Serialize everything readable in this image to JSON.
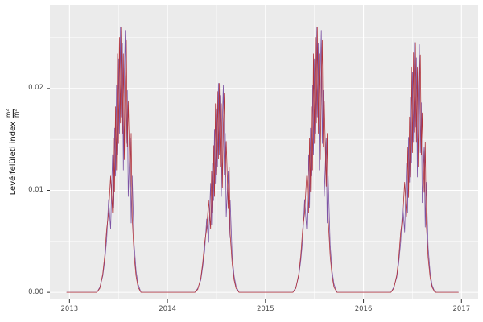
{
  "chart_data": {
    "type": "line",
    "title": "",
    "xlabel": "",
    "ylabel_text": "Levélfelületi index",
    "ylabel_fraction": {
      "numerator": "m²",
      "denominator": "m²"
    },
    "layout": {
      "panel_bg": "#EBEBEB",
      "grid_major": "#FFFFFF",
      "grid_minor": "#FFFFFF",
      "tick_color": "#333333",
      "label_color": "#4D4D4D",
      "grid": "on",
      "legend": "none",
      "domain": {
        "xmin": 2012.8,
        "xmax": 2017.17,
        "ymin": -0.0007,
        "ymax": 0.0282
      }
    },
    "x_axis": {
      "ticks": [
        {
          "v": 2013,
          "label": "2013"
        },
        {
          "v": 2014,
          "label": "2014"
        },
        {
          "v": 2015,
          "label": "2015"
        },
        {
          "v": 2016,
          "label": "2016"
        },
        {
          "v": 2017,
          "label": "2017"
        }
      ],
      "minor": [
        2013.5,
        2014.5,
        2015.5,
        2016.5
      ]
    },
    "y_axis": {
      "ticks": [
        {
          "v": 0.0,
          "label": "0.00"
        },
        {
          "v": 0.01,
          "label": "0.01"
        },
        {
          "v": 0.02,
          "label": "0.02"
        }
      ],
      "minor": [
        0.005,
        0.015,
        0.025
      ]
    },
    "series": [
      {
        "name": "series-purple",
        "color": "#7D54A5",
        "points": [
          [
            2012.97,
            0
          ],
          [
            2013.28,
            0
          ],
          [
            2013.31,
            0.0005
          ],
          [
            2013.34,
            0.0016
          ],
          [
            2013.36,
            0.0031
          ],
          [
            2013.38,
            0.0052
          ],
          [
            2013.4,
            0.0091
          ],
          [
            2013.42,
            0.0062
          ],
          [
            2013.44,
            0.0135
          ],
          [
            2013.45,
            0.0083
          ],
          [
            2013.46,
            0.0161
          ],
          [
            2013.47,
            0.0114
          ],
          [
            2013.48,
            0.0203
          ],
          [
            2013.49,
            0.0135
          ],
          [
            2013.5,
            0.0229
          ],
          [
            2013.51,
            0.0156
          ],
          [
            2013.52,
            0.026
          ],
          [
            2013.53,
            0.0172
          ],
          [
            2013.54,
            0.0244
          ],
          [
            2013.55,
            0.012
          ],
          [
            2013.56,
            0.0213
          ],
          [
            2013.57,
            0.0257
          ],
          [
            2013.58,
            0.0146
          ],
          [
            2013.59,
            0.0198
          ],
          [
            2013.6,
            0.0094
          ],
          [
            2013.62,
            0.0151
          ],
          [
            2013.63,
            0.0068
          ],
          [
            2013.64,
            0.0114
          ],
          [
            2013.66,
            0.0047
          ],
          [
            2013.68,
            0.0021
          ],
          [
            2013.7,
            0.0008
          ],
          [
            2013.73,
            0
          ],
          [
            2014.28,
            0
          ],
          [
            2014.31,
            0.0004
          ],
          [
            2014.34,
            0.0012
          ],
          [
            2014.36,
            0.0025
          ],
          [
            2014.38,
            0.0041
          ],
          [
            2014.4,
            0.0072
          ],
          [
            2014.42,
            0.0049
          ],
          [
            2014.44,
            0.0107
          ],
          [
            2014.45,
            0.0066
          ],
          [
            2014.46,
            0.0127
          ],
          [
            2014.47,
            0.009
          ],
          [
            2014.48,
            0.016
          ],
          [
            2014.49,
            0.0107
          ],
          [
            2014.5,
            0.018
          ],
          [
            2014.51,
            0.0123
          ],
          [
            2014.52,
            0.0205
          ],
          [
            2014.53,
            0.0135
          ],
          [
            2014.54,
            0.0193
          ],
          [
            2014.55,
            0.0094
          ],
          [
            2014.56,
            0.0168
          ],
          [
            2014.57,
            0.0203
          ],
          [
            2014.58,
            0.0115
          ],
          [
            2014.59,
            0.0156
          ],
          [
            2014.6,
            0.0074
          ],
          [
            2014.62,
            0.0119
          ],
          [
            2014.63,
            0.0053
          ],
          [
            2014.64,
            0.009
          ],
          [
            2014.66,
            0.0037
          ],
          [
            2014.68,
            0.0016
          ],
          [
            2014.7,
            0.0006
          ],
          [
            2014.73,
            0
          ],
          [
            2015.28,
            0
          ],
          [
            2015.31,
            0.0005
          ],
          [
            2015.34,
            0.0016
          ],
          [
            2015.36,
            0.0031
          ],
          [
            2015.38,
            0.0052
          ],
          [
            2015.4,
            0.0091
          ],
          [
            2015.42,
            0.0062
          ],
          [
            2015.44,
            0.0135
          ],
          [
            2015.45,
            0.0083
          ],
          [
            2015.46,
            0.0161
          ],
          [
            2015.47,
            0.0114
          ],
          [
            2015.48,
            0.0203
          ],
          [
            2015.49,
            0.0135
          ],
          [
            2015.5,
            0.0229
          ],
          [
            2015.51,
            0.0156
          ],
          [
            2015.52,
            0.026
          ],
          [
            2015.53,
            0.0172
          ],
          [
            2015.54,
            0.0244
          ],
          [
            2015.55,
            0.012
          ],
          [
            2015.56,
            0.0213
          ],
          [
            2015.57,
            0.0257
          ],
          [
            2015.58,
            0.0146
          ],
          [
            2015.59,
            0.0198
          ],
          [
            2015.6,
            0.0094
          ],
          [
            2015.62,
            0.0151
          ],
          [
            2015.63,
            0.0068
          ],
          [
            2015.64,
            0.0114
          ],
          [
            2015.66,
            0.0047
          ],
          [
            2015.68,
            0.0021
          ],
          [
            2015.7,
            0.0008
          ],
          [
            2015.73,
            0
          ],
          [
            2016.28,
            0
          ],
          [
            2016.31,
            0.0005
          ],
          [
            2016.34,
            0.0015
          ],
          [
            2016.36,
            0.0029
          ],
          [
            2016.38,
            0.0049
          ],
          [
            2016.4,
            0.0086
          ],
          [
            2016.42,
            0.0059
          ],
          [
            2016.44,
            0.0127
          ],
          [
            2016.45,
            0.0078
          ],
          [
            2016.46,
            0.0152
          ],
          [
            2016.47,
            0.0108
          ],
          [
            2016.48,
            0.0191
          ],
          [
            2016.49,
            0.0127
          ],
          [
            2016.5,
            0.0216
          ],
          [
            2016.51,
            0.0147
          ],
          [
            2016.52,
            0.0245
          ],
          [
            2016.53,
            0.0162
          ],
          [
            2016.54,
            0.023
          ],
          [
            2016.55,
            0.0113
          ],
          [
            2016.56,
            0.0201
          ],
          [
            2016.57,
            0.0243
          ],
          [
            2016.58,
            0.0137
          ],
          [
            2016.59,
            0.0186
          ],
          [
            2016.6,
            0.0088
          ],
          [
            2016.62,
            0.0142
          ],
          [
            2016.63,
            0.0064
          ],
          [
            2016.64,
            0.0108
          ],
          [
            2016.66,
            0.0044
          ],
          [
            2016.68,
            0.002
          ],
          [
            2016.7,
            0.0007
          ],
          [
            2016.73,
            0
          ],
          [
            2016.97,
            0
          ]
        ]
      },
      {
        "name": "series-red",
        "color": "#B2343C",
        "points": [
          [
            2012.97,
            0
          ],
          [
            2013.28,
            0
          ],
          [
            2013.31,
            0.0004
          ],
          [
            2013.34,
            0.0018
          ],
          [
            2013.36,
            0.0036
          ],
          [
            2013.38,
            0.0062
          ],
          [
            2013.4,
            0.0078
          ],
          [
            2013.42,
            0.0114
          ],
          [
            2013.44,
            0.0078
          ],
          [
            2013.45,
            0.0151
          ],
          [
            2013.46,
            0.0099
          ],
          [
            2013.47,
            0.0182
          ],
          [
            2013.48,
            0.012
          ],
          [
            2013.49,
            0.0234
          ],
          [
            2013.5,
            0.0146
          ],
          [
            2013.51,
            0.025
          ],
          [
            2013.52,
            0.0166
          ],
          [
            2013.53,
            0.026
          ],
          [
            2013.54,
            0.0156
          ],
          [
            2013.55,
            0.0234
          ],
          [
            2013.56,
            0.013
          ],
          [
            2013.57,
            0.0208
          ],
          [
            2013.58,
            0.0247
          ],
          [
            2013.59,
            0.0143
          ],
          [
            2013.6,
            0.0187
          ],
          [
            2013.62,
            0.0104
          ],
          [
            2013.63,
            0.0156
          ],
          [
            2013.64,
            0.0073
          ],
          [
            2013.66,
            0.0036
          ],
          [
            2013.68,
            0.0016
          ],
          [
            2013.7,
            0.0005
          ],
          [
            2013.73,
            0
          ],
          [
            2014.28,
            0
          ],
          [
            2014.31,
            0.0003
          ],
          [
            2014.34,
            0.0014
          ],
          [
            2014.36,
            0.0029
          ],
          [
            2014.38,
            0.0049
          ],
          [
            2014.4,
            0.0062
          ],
          [
            2014.42,
            0.009
          ],
          [
            2014.44,
            0.0062
          ],
          [
            2014.45,
            0.0119
          ],
          [
            2014.46,
            0.0078
          ],
          [
            2014.47,
            0.0144
          ],
          [
            2014.48,
            0.0094
          ],
          [
            2014.49,
            0.0185
          ],
          [
            2014.5,
            0.0115
          ],
          [
            2014.51,
            0.0197
          ],
          [
            2014.52,
            0.0131
          ],
          [
            2014.53,
            0.0205
          ],
          [
            2014.54,
            0.0123
          ],
          [
            2014.55,
            0.0185
          ],
          [
            2014.56,
            0.0103
          ],
          [
            2014.57,
            0.0164
          ],
          [
            2014.58,
            0.0195
          ],
          [
            2014.59,
            0.0113
          ],
          [
            2014.6,
            0.0148
          ],
          [
            2014.62,
            0.0082
          ],
          [
            2014.63,
            0.0123
          ],
          [
            2014.64,
            0.0057
          ],
          [
            2014.66,
            0.0029
          ],
          [
            2014.68,
            0.0012
          ],
          [
            2014.7,
            0.0004
          ],
          [
            2014.73,
            0
          ],
          [
            2015.28,
            0
          ],
          [
            2015.31,
            0.0004
          ],
          [
            2015.34,
            0.0018
          ],
          [
            2015.36,
            0.0036
          ],
          [
            2015.38,
            0.0062
          ],
          [
            2015.4,
            0.0078
          ],
          [
            2015.42,
            0.0114
          ],
          [
            2015.44,
            0.0078
          ],
          [
            2015.45,
            0.0151
          ],
          [
            2015.46,
            0.0099
          ],
          [
            2015.47,
            0.0182
          ],
          [
            2015.48,
            0.012
          ],
          [
            2015.49,
            0.0234
          ],
          [
            2015.5,
            0.0146
          ],
          [
            2015.51,
            0.025
          ],
          [
            2015.52,
            0.0166
          ],
          [
            2015.53,
            0.026
          ],
          [
            2015.54,
            0.0156
          ],
          [
            2015.55,
            0.0234
          ],
          [
            2015.56,
            0.013
          ],
          [
            2015.57,
            0.0208
          ],
          [
            2015.58,
            0.0247
          ],
          [
            2015.59,
            0.0143
          ],
          [
            2015.6,
            0.0187
          ],
          [
            2015.62,
            0.0104
          ],
          [
            2015.63,
            0.0156
          ],
          [
            2015.64,
            0.0073
          ],
          [
            2015.66,
            0.0036
          ],
          [
            2015.68,
            0.0016
          ],
          [
            2015.7,
            0.0005
          ],
          [
            2015.73,
            0
          ],
          [
            2016.28,
            0
          ],
          [
            2016.31,
            0.0004
          ],
          [
            2016.34,
            0.0017
          ],
          [
            2016.36,
            0.0034
          ],
          [
            2016.38,
            0.0059
          ],
          [
            2016.4,
            0.0074
          ],
          [
            2016.42,
            0.0108
          ],
          [
            2016.44,
            0.0074
          ],
          [
            2016.45,
            0.0142
          ],
          [
            2016.46,
            0.0093
          ],
          [
            2016.47,
            0.0172
          ],
          [
            2016.48,
            0.0113
          ],
          [
            2016.49,
            0.0221
          ],
          [
            2016.5,
            0.0137
          ],
          [
            2016.51,
            0.0235
          ],
          [
            2016.52,
            0.0157
          ],
          [
            2016.53,
            0.0245
          ],
          [
            2016.54,
            0.0147
          ],
          [
            2016.55,
            0.0221
          ],
          [
            2016.56,
            0.0123
          ],
          [
            2016.57,
            0.0196
          ],
          [
            2016.58,
            0.0233
          ],
          [
            2016.59,
            0.0135
          ],
          [
            2016.6,
            0.0176
          ],
          [
            2016.62,
            0.0098
          ],
          [
            2016.63,
            0.0147
          ],
          [
            2016.64,
            0.0069
          ],
          [
            2016.66,
            0.0034
          ],
          [
            2016.68,
            0.0015
          ],
          [
            2016.7,
            0.0005
          ],
          [
            2016.73,
            0
          ],
          [
            2016.97,
            0
          ]
        ]
      }
    ]
  }
}
